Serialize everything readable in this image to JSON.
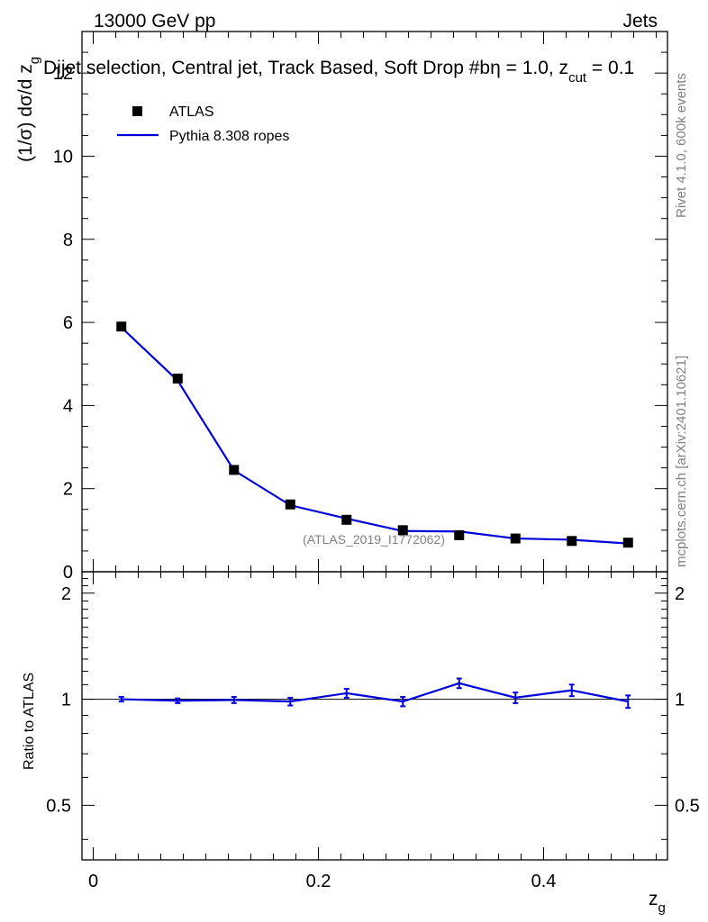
{
  "header": {
    "left": "13000 GeV pp",
    "right": "Jets",
    "title_main": "Dijet selection, Central jet, Track Based, Soft Drop #b",
    "title_eta": "η = 1.0, z",
    "title_cut_sub": "cut",
    "title_tail": " = 0.1"
  },
  "side": {
    "rivet": "Rivet 4.1.0,  600k events",
    "mcplots": "mcplots.cern.ch [arXiv:2401.10621]"
  },
  "watermark": "(ATLAS_2019_I1772062)",
  "colors": {
    "mc": "#0000dd",
    "data": "#000000",
    "axis": "#000000",
    "watermark": "#808080"
  },
  "chart_data": [
    {
      "type": "scatter+line",
      "panel": "main",
      "ylabel": "(1/σ) dσ/d z",
      "ylabel_sub": "g",
      "xlabel": "z",
      "xlabel_sub": "g",
      "xlim": [
        -0.01,
        0.51
      ],
      "ylim": [
        0,
        13
      ],
      "yticks": [
        0,
        2,
        4,
        6,
        8,
        10,
        12
      ],
      "ytick_labels": [
        "0",
        "2",
        "4",
        "6",
        "8",
        "10",
        "12"
      ],
      "legend": [
        {
          "label": "ATLAS",
          "style": "marker"
        },
        {
          "label": "Pythia 8.308 ropes",
          "style": "line"
        }
      ],
      "x": [
        0.025,
        0.075,
        0.125,
        0.175,
        0.225,
        0.275,
        0.325,
        0.375,
        0.425,
        0.475
      ],
      "series": [
        {
          "name": "ATLAS",
          "values": [
            5.9,
            4.65,
            2.45,
            1.62,
            1.25,
            1.0,
            0.88,
            0.8,
            0.74,
            0.7
          ]
        },
        {
          "name": "Pythia 8.308 ropes",
          "values": [
            5.88,
            4.6,
            2.44,
            1.6,
            1.28,
            0.98,
            0.97,
            0.8,
            0.77,
            0.68
          ]
        }
      ]
    },
    {
      "type": "line",
      "panel": "ratio",
      "ylabel": "Ratio to ATLAS",
      "xlabel": "z",
      "xlabel_sub": "g",
      "xlim": [
        -0.01,
        0.51
      ],
      "ylim": [
        0.35,
        2.3
      ],
      "yscale": "log",
      "yticks": [
        0.5,
        1,
        2
      ],
      "ytick_labels": [
        "0.5",
        "1",
        "2"
      ],
      "xticks": [
        0,
        0.2,
        0.4
      ],
      "xtick_labels": [
        "0",
        "0.2",
        "0.4"
      ],
      "x": [
        0.025,
        0.075,
        0.125,
        0.175,
        0.225,
        0.275,
        0.325,
        0.375,
        0.425,
        0.475
      ],
      "series": [
        {
          "name": "Pythia 8.308 ropes / ATLAS",
          "values": [
            1.0,
            0.99,
            0.995,
            0.985,
            1.04,
            0.985,
            1.11,
            1.01,
            1.06,
            0.985
          ],
          "errors": [
            0.015,
            0.015,
            0.02,
            0.025,
            0.03,
            0.03,
            0.035,
            0.035,
            0.04,
            0.04
          ]
        }
      ]
    }
  ]
}
